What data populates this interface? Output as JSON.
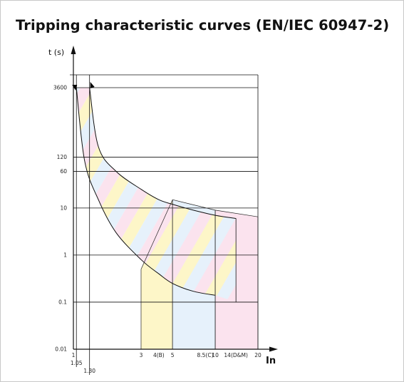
{
  "title": "Tripping characteristic curves (EN/IEC 60947-2)",
  "chart_data": {
    "type": "line",
    "title": "Tripping characteristic curves (EN/IEC 60947-2)",
    "xlabel": "In",
    "ylabel": "t (s)",
    "x_scale": "log",
    "y_scale": "log",
    "xlim": [
      1,
      20
    ],
    "ylim": [
      0.01,
      3600
    ],
    "y_ticks": [
      {
        "v": 0.01,
        "label": "0.01"
      },
      {
        "v": 0.1,
        "label": "0.1"
      },
      {
        "v": 1,
        "label": "1"
      },
      {
        "v": 10,
        "label": "10"
      },
      {
        "v": 60,
        "label": "60"
      },
      {
        "v": 120,
        "label": "120"
      },
      {
        "v": 3600,
        "label": "3600"
      }
    ],
    "x_ticks": [
      {
        "v": 1,
        "label": "1",
        "row": 0
      },
      {
        "v": 1.05,
        "label": "1.05",
        "row": 1
      },
      {
        "v": 1.3,
        "label": "1.30",
        "row": 2
      },
      {
        "v": 3,
        "label": "3",
        "row": 0
      },
      {
        "v": 4,
        "label": "4(B)",
        "row": 0
      },
      {
        "v": 5,
        "label": "5",
        "row": 0
      },
      {
        "v": 8.5,
        "label": "8.5(C)",
        "row": 0
      },
      {
        "v": 10,
        "label": "10",
        "row": 0
      },
      {
        "v": 14,
        "label": "14(D&M)",
        "row": 0
      },
      {
        "v": 20,
        "label": "20",
        "row": 0
      }
    ],
    "grid_y": [
      0.1,
      1,
      10,
      60,
      120,
      3600
    ],
    "grid_x": [
      1.05,
      1.3,
      20
    ],
    "bands": [
      {
        "name": "B",
        "x_from": 3,
        "x_to": 5,
        "color": "#fdf6c8"
      },
      {
        "name": "C",
        "x_from": 5,
        "x_to": 10,
        "color": "#e6f1fb"
      },
      {
        "name": "D&M",
        "x_from": 10,
        "x_to": 20,
        "color": "#fbe3ee"
      }
    ],
    "upper_curve": [
      [
        1.3,
        3600
      ],
      [
        1.5,
        200
      ],
      [
        2,
        60
      ],
      [
        3,
        25
      ],
      [
        4,
        15
      ],
      [
        5,
        12
      ],
      [
        7,
        9
      ],
      [
        10,
        7
      ],
      [
        14,
        6
      ]
    ],
    "lower_curve": [
      [
        1.05,
        3600
      ],
      [
        1.2,
        100
      ],
      [
        1.5,
        15
      ],
      [
        2,
        3
      ],
      [
        3,
        0.8
      ],
      [
        4,
        0.4
      ],
      [
        5,
        0.25
      ],
      [
        7,
        0.17
      ],
      [
        10,
        0.14
      ]
    ],
    "band_top_values": [
      0.5,
      15,
      9,
      6.5
    ],
    "band_bottom_values": [
      0.01,
      0.01,
      0.01,
      0.01
    ],
    "stripe_colors": [
      "#fdf6c8",
      "#e6f1fb",
      "#fbe3ee"
    ]
  }
}
